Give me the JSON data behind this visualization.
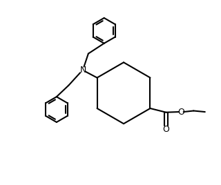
{
  "bg_color": "#ffffff",
  "line_color": "#000000",
  "line_width": 1.5,
  "figsize": [
    3.2,
    2.68
  ],
  "dpi": 100,
  "xlim": [
    0,
    10
  ],
  "ylim": [
    0,
    8.35
  ]
}
